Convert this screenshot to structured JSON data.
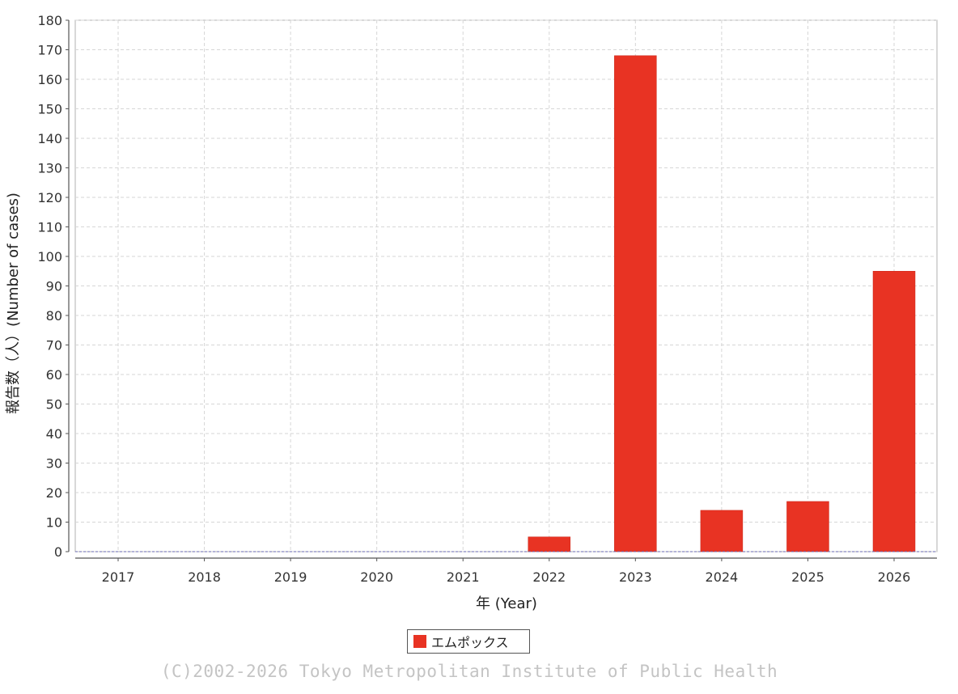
{
  "chart_data": {
    "type": "bar",
    "categories": [
      "2017",
      "2018",
      "2019",
      "2020",
      "2021",
      "2022",
      "2023",
      "2024",
      "2025",
      "2026"
    ],
    "series": [
      {
        "name": "エムポックス",
        "values": [
          0,
          0,
          0,
          0,
          0,
          5,
          168,
          14,
          17,
          95
        ],
        "color": "#e83323"
      }
    ],
    "xlabel": "年 (Year)",
    "ylabel": "報告数（人）(Number of cases)",
    "ylim": [
      0,
      180
    ],
    "ytick_step": 10,
    "grid": true,
    "legend_position": "bottom-center"
  },
  "legend": {
    "label": "エムポックス",
    "color": "#e83323"
  },
  "footer": {
    "copyright": "(C)2002-2026 Tokyo Metropolitan Institute of Public Health"
  }
}
